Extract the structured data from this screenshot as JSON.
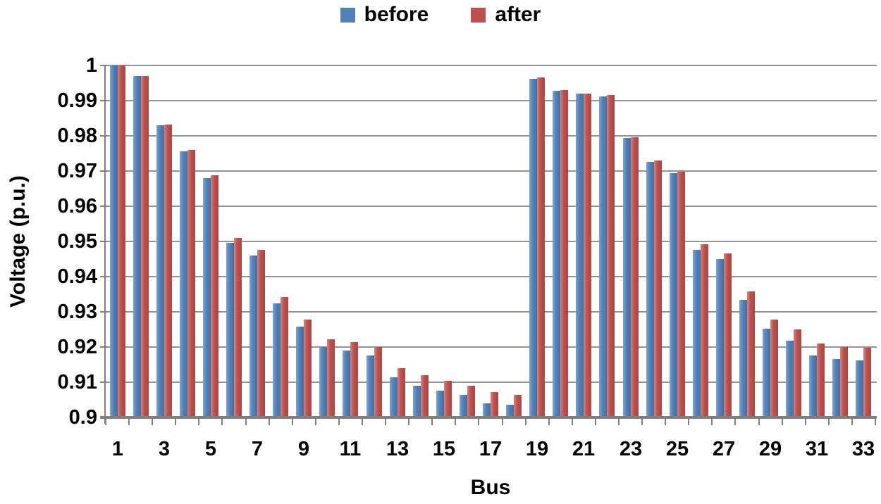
{
  "chart_data": {
    "type": "bar",
    "title": "",
    "xlabel": "Bus",
    "ylabel": "Voltage (p.u.)",
    "ylim": [
      0.9,
      1.0
    ],
    "grid": "horizontal",
    "legend_position": "top-center",
    "ytick_values": [
      1,
      0.99,
      0.98,
      0.97,
      0.96,
      0.95,
      0.94,
      0.93,
      0.92,
      0.91,
      0.9
    ],
    "ytick_labels": [
      "1",
      "0.99",
      "0.98",
      "0.97",
      "0.96",
      "0.95",
      "0.94",
      "0.93",
      "0.92",
      "0.91",
      "0.9"
    ],
    "categories": [
      1,
      2,
      3,
      4,
      5,
      6,
      7,
      8,
      9,
      10,
      11,
      12,
      13,
      14,
      15,
      16,
      17,
      18,
      19,
      20,
      21,
      22,
      23,
      24,
      25,
      26,
      27,
      28,
      29,
      30,
      31,
      32,
      33
    ],
    "xtick_labels": [
      "1",
      "3",
      "5",
      "7",
      "9",
      "11",
      "13",
      "15",
      "17",
      "19",
      "21",
      "23",
      "25",
      "27",
      "29",
      "31",
      "33"
    ],
    "series": [
      {
        "name": "before",
        "color": "#4f81bd",
        "values": [
          1.0,
          0.997,
          0.983,
          0.9755,
          0.968,
          0.9495,
          0.946,
          0.9323,
          0.9258,
          0.92,
          0.919,
          0.9176,
          0.9114,
          0.909,
          0.9076,
          0.9064,
          0.904,
          0.9036,
          0.9963,
          0.9928,
          0.992,
          0.9913,
          0.9794,
          0.9726,
          0.9694,
          0.9475,
          0.945,
          0.9334,
          0.9251,
          0.9218,
          0.9176,
          0.9166,
          0.9163
        ]
      },
      {
        "name": "after",
        "color": "#c0504d",
        "values": [
          1.0,
          0.997,
          0.9832,
          0.976,
          0.9688,
          0.951,
          0.9476,
          0.9341,
          0.9279,
          0.9222,
          0.9214,
          0.92,
          0.9139,
          0.9119,
          0.9104,
          0.909,
          0.9072,
          0.9065,
          0.9965,
          0.993,
          0.9921,
          0.9915,
          0.9796,
          0.9731,
          0.9698,
          0.9491,
          0.9466,
          0.9358,
          0.9279,
          0.9249,
          0.9209,
          0.92,
          0.9198
        ]
      }
    ]
  }
}
